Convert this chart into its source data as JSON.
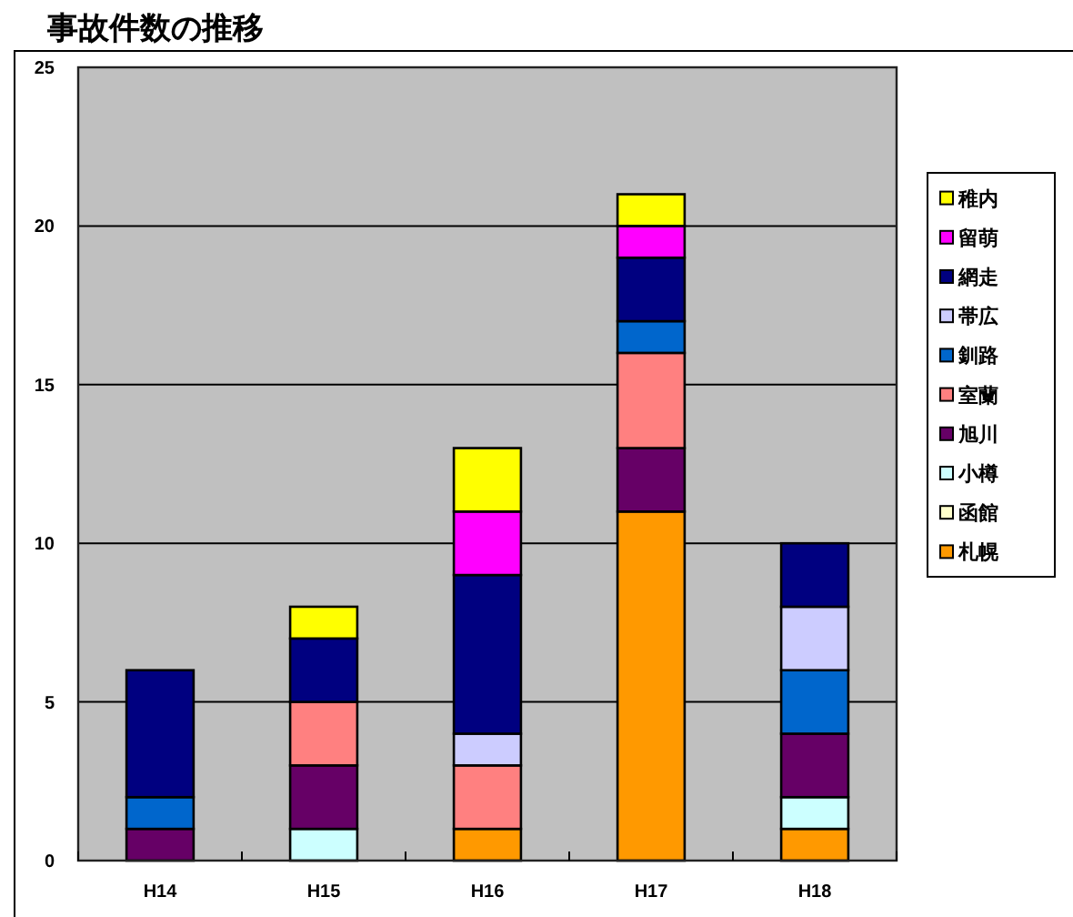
{
  "chart_data": {
    "type": "bar",
    "title": "事故件数の推移",
    "stacked": true,
    "categories": [
      "H14",
      "H15",
      "H16",
      "H17",
      "H18"
    ],
    "series": [
      {
        "name": "札幌",
        "color": "#ff9900",
        "values": [
          0,
          0,
          1,
          11,
          1
        ]
      },
      {
        "name": "函館",
        "color": "#ffffcc",
        "values": [
          0,
          0,
          0,
          0,
          0
        ]
      },
      {
        "name": "小樽",
        "color": "#ccffff",
        "values": [
          0,
          1,
          0,
          0,
          1
        ]
      },
      {
        "name": "旭川",
        "color": "#660066",
        "values": [
          1,
          2,
          0,
          2,
          2
        ]
      },
      {
        "name": "室蘭",
        "color": "#ff8080",
        "values": [
          0,
          2,
          2,
          3,
          0
        ]
      },
      {
        "name": "釧路",
        "color": "#0066cc",
        "values": [
          1,
          0,
          0,
          1,
          2
        ]
      },
      {
        "name": "帯広",
        "color": "#ccccff",
        "values": [
          0,
          0,
          1,
          0,
          2
        ]
      },
      {
        "name": "網走",
        "color": "#000080",
        "values": [
          4,
          2,
          5,
          2,
          2
        ]
      },
      {
        "name": "留萌",
        "color": "#ff00ff",
        "values": [
          0,
          0,
          2,
          1,
          0
        ]
      },
      {
        "name": "稚内",
        "color": "#ffff00",
        "values": [
          0,
          1,
          2,
          1,
          0
        ]
      }
    ],
    "ylim": [
      0,
      25
    ],
    "yticks": [
      0,
      5,
      10,
      15,
      20,
      25
    ],
    "grid": "y",
    "legend": "right"
  }
}
